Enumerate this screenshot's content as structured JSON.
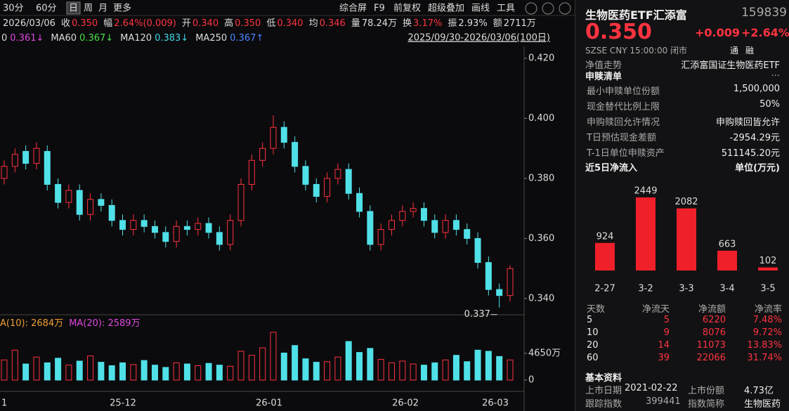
{
  "toolbar": {
    "periods": [
      "30分",
      "60分",
      "日",
      "周",
      "月",
      "更多"
    ],
    "tools": [
      "综合屏",
      "F9",
      "前复权",
      "超级叠加",
      "画线",
      "工具"
    ]
  },
  "quote_bar": {
    "date": "2026/03/06",
    "items": [
      {
        "label": "收",
        "value": "0.350"
      },
      {
        "label": "幅",
        "value": "2.64%(0.009)"
      },
      {
        "label": "开",
        "value": "0.340"
      },
      {
        "label": "高",
        "value": "0.350"
      },
      {
        "label": "低",
        "value": "0.340"
      },
      {
        "label": "均",
        "value": "0.346"
      },
      {
        "label": "量",
        "value": "78.24万"
      },
      {
        "label": "换",
        "value": "3.17%"
      },
      {
        "label": "振",
        "value": "2.93%"
      },
      {
        "label": "额",
        "value": "2711万"
      }
    ]
  },
  "ma_legend": {
    "items": [
      {
        "name": "0",
        "value": "0.361↓",
        "color": "#e048e0"
      },
      {
        "name": "MA60",
        "value": "0.367↓",
        "color": "#48e048"
      },
      {
        "name": "MA120",
        "value": "0.383↓",
        "color": "#40d8e8"
      },
      {
        "name": "MA250",
        "value": "0.367↑",
        "color": "#4a86ff"
      }
    ],
    "range": "2025/09/30-2026/03/06(100日)"
  },
  "volume_legend": [
    {
      "text": "A(10): 2684万",
      "color": "#f0a030"
    },
    {
      "text": "MA(20): 2589万",
      "color": "#e048e0"
    }
  ],
  "chart_data": [
    {
      "type": "candlestick",
      "up_color": "#ff3040",
      "down_color": "#50e0e8",
      "low_annotation": "0.337",
      "x_tick_labels": [
        "1",
        "25-12",
        "26-01",
        "26-02",
        "26-03"
      ],
      "ylim": [
        0.3353,
        0.4394
      ],
      "yticks": [
        {
          "value": 0.42,
          "label": "0.420"
        },
        {
          "value": 0.4,
          "label": "0.400"
        },
        {
          "value": 0.38,
          "label": "0.380"
        },
        {
          "value": 0.36,
          "label": "0.360"
        },
        {
          "value": 0.34,
          "label": "0.340"
        }
      ],
      "open": [
        0.38,
        0.384,
        0.389,
        0.385,
        0.389,
        0.378,
        0.372,
        0.376,
        0.368,
        0.373,
        0.371,
        0.366,
        0.363,
        0.366,
        0.364,
        0.362,
        0.359,
        0.364,
        0.363,
        0.365,
        0.362,
        0.358,
        0.366,
        0.378,
        0.386,
        0.39,
        0.397,
        0.392,
        0.384,
        0.378,
        0.374,
        0.38,
        0.383,
        0.375,
        0.369,
        0.358,
        0.363,
        0.366,
        0.369,
        0.37,
        0.366,
        0.362,
        0.366,
        0.363,
        0.36,
        0.352,
        0.343,
        0.341
      ],
      "high": [
        0.386,
        0.39,
        0.391,
        0.392,
        0.391,
        0.38,
        0.378,
        0.378,
        0.375,
        0.375,
        0.373,
        0.368,
        0.368,
        0.368,
        0.366,
        0.364,
        0.366,
        0.366,
        0.367,
        0.367,
        0.364,
        0.368,
        0.38,
        0.388,
        0.392,
        0.401,
        0.399,
        0.394,
        0.386,
        0.38,
        0.382,
        0.385,
        0.385,
        0.377,
        0.371,
        0.365,
        0.368,
        0.371,
        0.372,
        0.372,
        0.368,
        0.368,
        0.368,
        0.365,
        0.362,
        0.354,
        0.345,
        0.351
      ],
      "low": [
        0.378,
        0.382,
        0.383,
        0.383,
        0.376,
        0.37,
        0.37,
        0.366,
        0.366,
        0.369,
        0.364,
        0.361,
        0.361,
        0.362,
        0.36,
        0.357,
        0.357,
        0.361,
        0.361,
        0.36,
        0.356,
        0.356,
        0.364,
        0.376,
        0.384,
        0.388,
        0.39,
        0.382,
        0.376,
        0.372,
        0.372,
        0.378,
        0.373,
        0.367,
        0.356,
        0.356,
        0.361,
        0.364,
        0.367,
        0.364,
        0.36,
        0.36,
        0.361,
        0.358,
        0.35,
        0.341,
        0.337,
        0.339
      ],
      "close": [
        0.384,
        0.388,
        0.385,
        0.39,
        0.378,
        0.372,
        0.376,
        0.368,
        0.373,
        0.371,
        0.366,
        0.363,
        0.366,
        0.364,
        0.362,
        0.359,
        0.364,
        0.363,
        0.365,
        0.362,
        0.358,
        0.366,
        0.378,
        0.386,
        0.39,
        0.397,
        0.392,
        0.384,
        0.378,
        0.374,
        0.38,
        0.383,
        0.375,
        0.369,
        0.358,
        0.363,
        0.366,
        0.369,
        0.37,
        0.366,
        0.362,
        0.366,
        0.363,
        0.36,
        0.352,
        0.343,
        0.341,
        0.35
      ]
    },
    {
      "type": "bar",
      "ylim": [
        0,
        8900
      ],
      "yticks": [
        {
          "value": 4650,
          "label": "4650万"
        },
        0
      ],
      "values": [
        3500,
        5200,
        2800,
        4000,
        3000,
        3800,
        2600,
        3300,
        4200,
        3100,
        2500,
        3000,
        2700,
        3400,
        2600,
        2200,
        3000,
        2800,
        2500,
        2900,
        2600,
        2400,
        5000,
        4300,
        5600,
        8300,
        4700,
        6000,
        3700,
        3100,
        3200,
        4000,
        6700,
        4800,
        5500,
        3600,
        3000,
        3300,
        2800,
        2600,
        3000,
        3500,
        4300,
        3200,
        5200,
        5000,
        4100,
        3500
      ]
    },
    {
      "type": "bar",
      "title": "近5日净流入",
      "unit": "单位(万元)",
      "color": "#f0202a",
      "categories": [
        "2-27",
        "3-2",
        "3-3",
        "3-4",
        "3-5"
      ],
      "values": [
        924,
        2449,
        2082,
        663,
        102
      ]
    }
  ],
  "quote": {
    "name": "生物医药ETF汇添富",
    "code": "159839",
    "price": "0.350",
    "change": "+0.009",
    "pct": "+2.64%",
    "meta": "SZSE  CNY  15:00:00  闭市",
    "badges": [
      "通",
      "融"
    ]
  },
  "nav": {
    "label": "净值走势",
    "value": "汇添富国证生物医药ETF"
  },
  "creation": {
    "title": "申赎清单",
    "more": "...",
    "rows": [
      [
        "最小申赎单位份额",
        "1,500,000"
      ],
      [
        "现金替代比例上限",
        "50%"
      ],
      [
        "申购赎回允许情况",
        "申购赎回皆允许"
      ],
      [
        "T日预估现金差额",
        "-2954.29元"
      ],
      [
        "T-1日单位申赎资产",
        "511145.20元"
      ]
    ]
  },
  "flow_table": {
    "header": [
      "天数",
      "净流天",
      "净流额",
      "净流率"
    ],
    "rows": [
      [
        "5",
        "5",
        "6220",
        "7.48%"
      ],
      [
        "10",
        "9",
        "8076",
        "9.72%"
      ],
      [
        "20",
        "14",
        "11073",
        "13.83%"
      ],
      [
        "60",
        "39",
        "22066",
        "31.74%"
      ]
    ]
  },
  "basic": {
    "title": "基本资料",
    "items": [
      [
        "上市日期",
        "2021-02-22",
        "上市份额",
        "4.73亿"
      ],
      [
        "跟踪指数",
        "399441",
        "指数简称",
        "生物医药"
      ]
    ]
  }
}
